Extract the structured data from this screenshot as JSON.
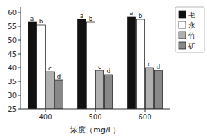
{
  "chart_data": {
    "type": "bar",
    "xlabel": "浓度（mg/L）",
    "categories": [
      "400",
      "500",
      "600"
    ],
    "series": [
      {
        "name": "毛",
        "color": "#111111",
        "values": [
          56.5,
          57.5,
          58.5
        ],
        "annotations": [
          "a",
          "a",
          "a"
        ]
      },
      {
        "name": "永",
        "color": "#ffffff",
        "values": [
          55.5,
          56.5,
          57.5
        ],
        "annotations": [
          "b",
          "b",
          "b"
        ]
      },
      {
        "name": "竹",
        "color": "#b0b0b0",
        "values": [
          38.5,
          39.0,
          40.0
        ],
        "annotations": [
          "c",
          "c",
          "c"
        ]
      },
      {
        "name": "矿",
        "color": "#888888",
        "values": [
          35.5,
          37.5,
          39.0
        ],
        "annotations": [
          "d",
          "d",
          "d"
        ]
      }
    ],
    "ylim": [
      25,
      62
    ],
    "yticks": [
      25,
      30,
      35,
      40,
      45,
      50,
      55,
      60
    ],
    "grid": false,
    "legend": "upper right"
  }
}
